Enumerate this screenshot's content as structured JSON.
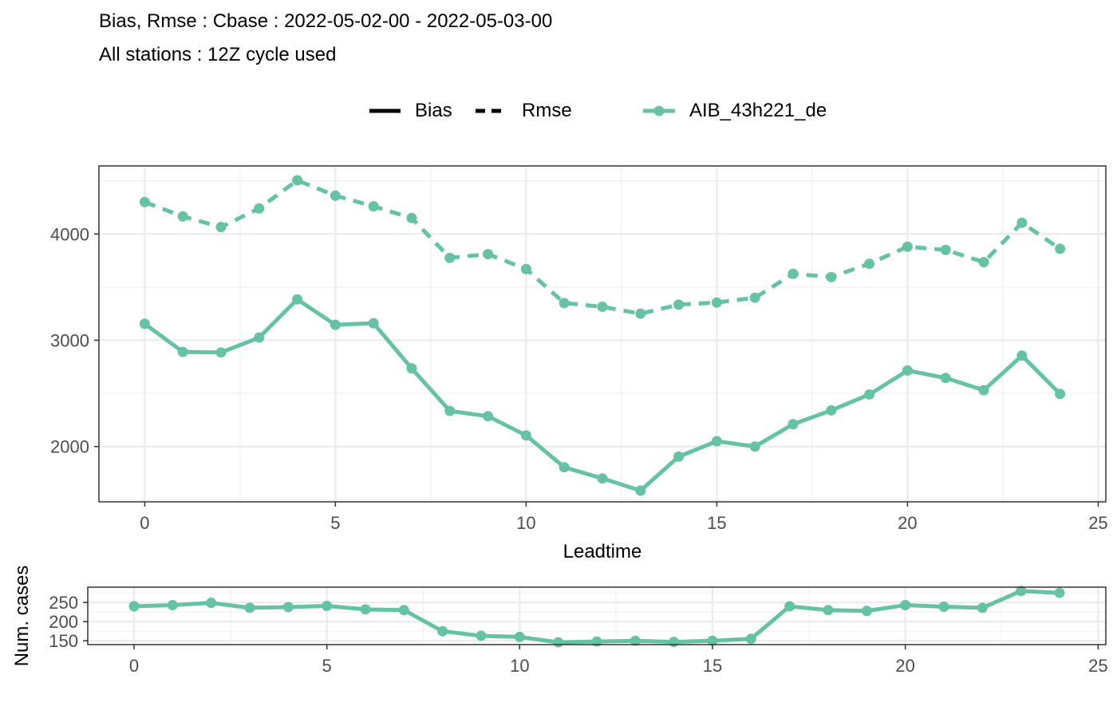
{
  "chart_data": [
    {
      "type": "line",
      "title": "Bias, Rmse : Cbase : 2022-05-02-00 - 2022-05-03-00",
      "subtitle": "All stations : 12Z cycle used",
      "xlabel": "Leadtime",
      "ylabel": "",
      "xlim": [
        -1.2,
        25.2
      ],
      "ylim": [
        1480,
        4640
      ],
      "x_ticks": [
        0,
        5,
        10,
        15,
        20,
        25
      ],
      "y_ticks": [
        2000,
        3000,
        4000
      ],
      "grid": true,
      "legend_position": "top",
      "legend": {
        "linetype_items": [
          {
            "label": "Bias",
            "style": "solid"
          },
          {
            "label": "Rmse",
            "style": "dashed"
          }
        ],
        "color_items": [
          {
            "label": "AIB_43h221_de",
            "color": "#66c2a5"
          }
        ]
      },
      "x": [
        0,
        1,
        2,
        3,
        4,
        5,
        6,
        7,
        8,
        9,
        10,
        11,
        12,
        13,
        14,
        15,
        16,
        17,
        18,
        19,
        20,
        21,
        22,
        23,
        24
      ],
      "series": [
        {
          "name": "AIB_43h221_de",
          "metric": "Rmse",
          "color": "#66c2a5",
          "style": "dashed",
          "values": [
            4300,
            4165,
            4065,
            4240,
            4505,
            4360,
            4260,
            4150,
            3775,
            3810,
            3670,
            3350,
            3315,
            3250,
            3335,
            3355,
            3400,
            3625,
            3595,
            3720,
            3880,
            3850,
            3735,
            4105,
            3860
          ]
        },
        {
          "name": "AIB_43h221_de",
          "metric": "Bias",
          "color": "#66c2a5",
          "style": "solid",
          "values": [
            3155,
            2890,
            2885,
            3025,
            3385,
            3145,
            3160,
            2735,
            2335,
            2285,
            2105,
            1805,
            1700,
            1585,
            1905,
            2050,
            2000,
            2210,
            2340,
            2490,
            2715,
            2645,
            2530,
            2855,
            2495
          ]
        }
      ]
    },
    {
      "type": "line",
      "title": "",
      "xlabel": "",
      "ylabel": "Num. cases",
      "xlim": [
        -1.2,
        25.2
      ],
      "ylim": [
        140,
        290
      ],
      "x_ticks": [
        0,
        5,
        10,
        15,
        20,
        25
      ],
      "y_ticks": [
        150,
        200,
        250
      ],
      "grid": true,
      "x": [
        0,
        1,
        2,
        3,
        4,
        5,
        6,
        7,
        8,
        9,
        10,
        11,
        12,
        13,
        14,
        15,
        16,
        17,
        18,
        19,
        20,
        21,
        22,
        23,
        24
      ],
      "series": [
        {
          "name": "AIB_43h221_de",
          "color": "#66c2a5",
          "style": "solid",
          "values": [
            240,
            243,
            249,
            236,
            238,
            241,
            232,
            230,
            175,
            163,
            160,
            146,
            148,
            150,
            147,
            150,
            155,
            240,
            230,
            228,
            243,
            239,
            236,
            280,
            275
          ]
        }
      ]
    }
  ]
}
